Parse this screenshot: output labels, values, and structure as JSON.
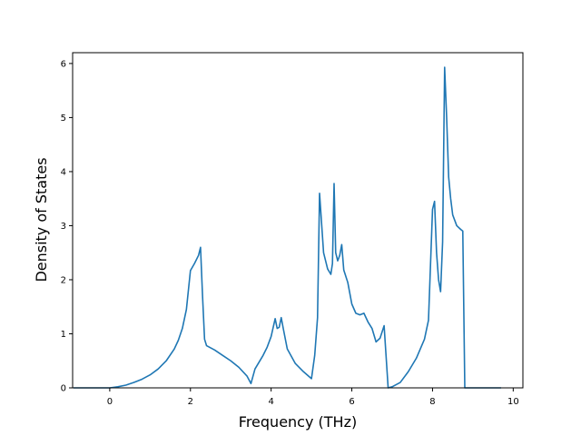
{
  "chart_data": {
    "type": "line",
    "title": "",
    "xlabel": "Frequency (THz)",
    "ylabel": "Density of States",
    "xlim": [
      -0.92,
      10.24
    ],
    "ylim": [
      0,
      6.2
    ],
    "xticks": [
      0,
      2,
      4,
      6,
      8,
      10
    ],
    "yticks": [
      0,
      1,
      2,
      3,
      4,
      5,
      6
    ],
    "grid": false,
    "legend": "none",
    "line_color": "#1f77b4",
    "series": [
      {
        "x": [
          -0.9,
          -0.5,
          0.0,
          0.2,
          0.4,
          0.6,
          0.8,
          1.0,
          1.2,
          1.4,
          1.6,
          1.7,
          1.8,
          1.9,
          2.0,
          2.1,
          2.2,
          2.25,
          2.3,
          2.35,
          2.4,
          2.6,
          2.8,
          3.0,
          3.2,
          3.4,
          3.5,
          3.6,
          3.8,
          3.9,
          4.0,
          4.1,
          4.15,
          4.2,
          4.25,
          4.3,
          4.4,
          4.6,
          4.8,
          5.0,
          5.08,
          5.15,
          5.2,
          5.3,
          5.4,
          5.48,
          5.52,
          5.56,
          5.6,
          5.65,
          5.7,
          5.75,
          5.8,
          5.9,
          6.0,
          6.1,
          6.2,
          6.3,
          6.4,
          6.5,
          6.6,
          6.7,
          6.8,
          6.9,
          7.0,
          7.2,
          7.4,
          7.6,
          7.8,
          7.9,
          8.0,
          8.05,
          8.1,
          8.15,
          8.2,
          8.25,
          8.3,
          8.35,
          8.4,
          8.45,
          8.5,
          8.6,
          8.7,
          8.75,
          8.8,
          8.85,
          9.0,
          9.3,
          9.7
        ],
        "y": [
          0,
          0,
          0,
          0.02,
          0.05,
          0.1,
          0.16,
          0.24,
          0.35,
          0.5,
          0.72,
          0.88,
          1.1,
          1.45,
          2.17,
          2.3,
          2.45,
          2.6,
          1.7,
          0.9,
          0.78,
          0.7,
          0.6,
          0.5,
          0.38,
          0.22,
          0.08,
          0.35,
          0.6,
          0.75,
          0.95,
          1.28,
          1.1,
          1.12,
          1.3,
          1.1,
          0.72,
          0.45,
          0.3,
          0.17,
          0.6,
          1.3,
          3.6,
          2.5,
          2.2,
          2.1,
          2.3,
          3.78,
          2.5,
          2.35,
          2.45,
          2.65,
          2.18,
          1.95,
          1.55,
          1.38,
          1.35,
          1.38,
          1.22,
          1.1,
          0.85,
          0.92,
          1.15,
          0.0,
          0.02,
          0.1,
          0.3,
          0.55,
          0.9,
          1.25,
          3.3,
          3.45,
          2.5,
          2.0,
          1.78,
          2.7,
          5.93,
          5.0,
          3.9,
          3.5,
          3.2,
          3.0,
          2.93,
          2.9,
          0.0,
          0.0,
          0.0,
          0.0,
          0.0
        ]
      }
    ]
  }
}
